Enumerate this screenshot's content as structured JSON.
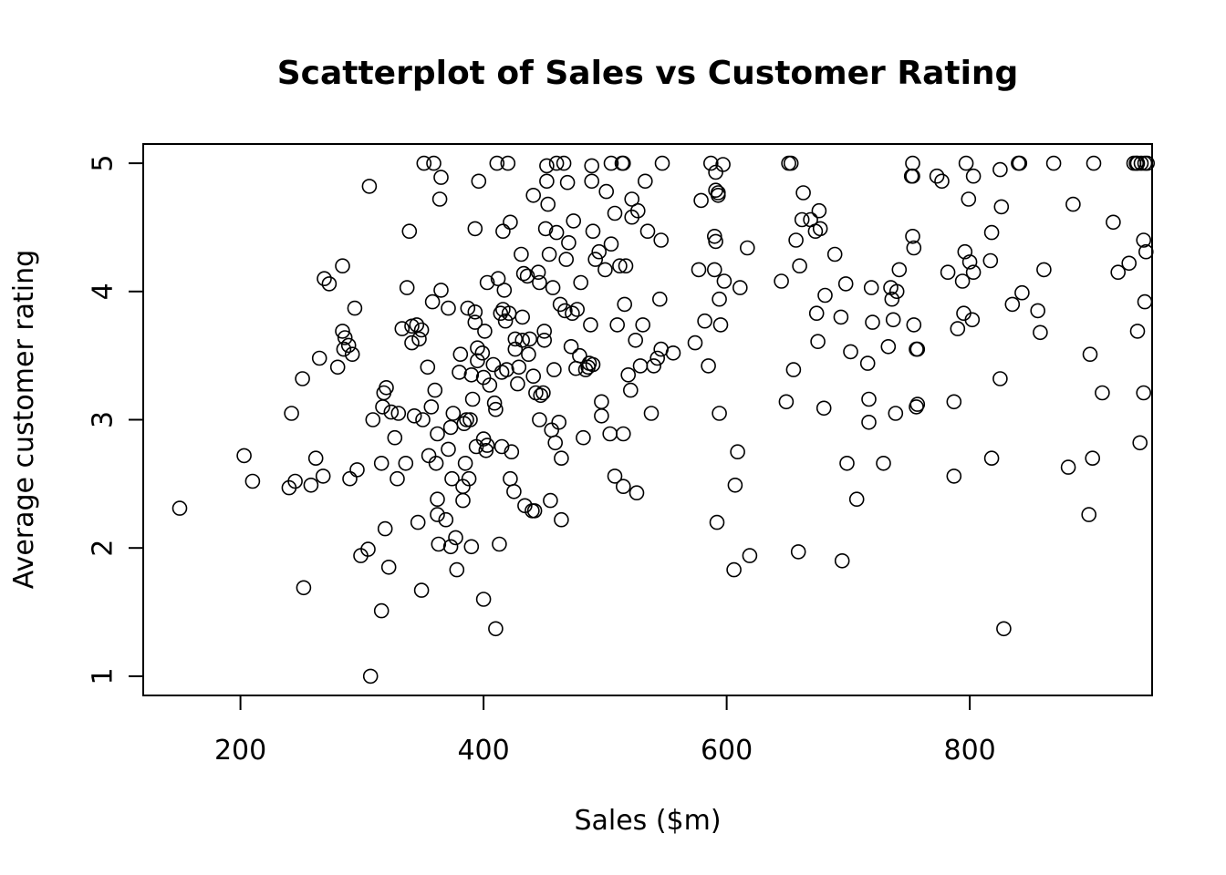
{
  "chart_data": {
    "type": "scatter",
    "title": "Scatterplot of Sales vs Customer Rating",
    "xlabel": "Sales ($m)",
    "ylabel": "Average customer rating",
    "xlim": [
      120,
      950
    ],
    "ylim": [
      0.85,
      5.15
    ],
    "xticks": [
      200,
      400,
      600,
      800
    ],
    "yticks": [
      1,
      2,
      3,
      4,
      5
    ],
    "grid": false,
    "legend": "none",
    "marker": "open-circle",
    "points": [
      [
        150,
        2.31
      ],
      [
        203,
        2.72
      ],
      [
        210,
        2.52
      ],
      [
        240,
        2.47
      ],
      [
        242,
        3.05
      ],
      [
        245,
        2.52
      ],
      [
        251,
        3.32
      ],
      [
        252,
        1.69
      ],
      [
        258,
        2.49
      ],
      [
        262,
        2.7
      ],
      [
        265,
        3.48
      ],
      [
        268,
        2.56
      ],
      [
        269,
        4.1
      ],
      [
        273,
        4.06
      ],
      [
        280,
        3.41
      ],
      [
        284,
        3.69
      ],
      [
        284,
        4.2
      ],
      [
        285,
        3.55
      ],
      [
        286,
        3.64
      ],
      [
        289,
        3.58
      ],
      [
        290,
        2.54
      ],
      [
        292,
        3.51
      ],
      [
        294,
        3.87
      ],
      [
        296,
        2.61
      ],
      [
        299,
        1.94
      ],
      [
        305,
        1.99
      ],
      [
        306,
        4.82
      ],
      [
        307,
        1.0
      ],
      [
        309,
        3.0
      ],
      [
        316,
        2.66
      ],
      [
        316,
        1.51
      ],
      [
        317,
        3.1
      ],
      [
        318,
        3.21
      ],
      [
        319,
        2.15
      ],
      [
        320,
        3.25
      ],
      [
        322,
        1.85
      ],
      [
        324,
        3.06
      ],
      [
        327,
        2.86
      ],
      [
        329,
        2.54
      ],
      [
        330,
        3.05
      ],
      [
        333,
        3.71
      ],
      [
        336,
        2.66
      ],
      [
        337,
        4.03
      ],
      [
        339,
        4.47
      ],
      [
        341,
        3.6
      ],
      [
        341,
        3.73
      ],
      [
        343,
        3.03
      ],
      [
        345,
        3.74
      ],
      [
        346,
        2.2
      ],
      [
        347,
        3.63
      ],
      [
        349,
        3.7
      ],
      [
        349,
        1.67
      ],
      [
        350,
        3.0
      ],
      [
        351,
        5.0
      ],
      [
        354,
        3.41
      ],
      [
        355,
        2.72
      ],
      [
        357,
        3.1
      ],
      [
        358,
        3.92
      ],
      [
        359,
        5.0
      ],
      [
        360,
        3.23
      ],
      [
        361,
        2.66
      ],
      [
        362,
        2.26
      ],
      [
        362,
        2.89
      ],
      [
        362,
        2.38
      ],
      [
        363,
        2.03
      ],
      [
        364,
        4.72
      ],
      [
        365,
        4.89
      ],
      [
        365,
        4.01
      ],
      [
        369,
        2.22
      ],
      [
        371,
        2.77
      ],
      [
        371,
        3.87
      ],
      [
        373,
        2.01
      ],
      [
        373,
        2.94
      ],
      [
        374,
        2.54
      ],
      [
        375,
        3.05
      ],
      [
        377,
        2.08
      ],
      [
        378,
        1.83
      ],
      [
        380,
        3.37
      ],
      [
        381,
        3.51
      ],
      [
        383,
        2.48
      ],
      [
        383,
        2.37
      ],
      [
        384,
        2.97
      ],
      [
        385,
        2.66
      ],
      [
        386,
        3.0
      ],
      [
        387,
        3.87
      ],
      [
        388,
        2.54
      ],
      [
        389,
        3.0
      ],
      [
        390,
        3.35
      ],
      [
        390,
        2.01
      ],
      [
        391,
        3.16
      ],
      [
        393,
        3.76
      ],
      [
        393,
        3.84
      ],
      [
        393,
        4.49
      ],
      [
        394,
        2.79
      ],
      [
        395,
        3.56
      ],
      [
        395,
        3.46
      ],
      [
        396,
        4.86
      ],
      [
        399,
        3.52
      ],
      [
        400,
        3.33
      ],
      [
        400,
        2.85
      ],
      [
        400,
        1.6
      ],
      [
        401,
        3.69
      ],
      [
        402,
        2.76
      ],
      [
        403,
        2.8
      ],
      [
        403,
        4.07
      ],
      [
        405,
        3.27
      ],
      [
        408,
        3.43
      ],
      [
        409,
        3.13
      ],
      [
        410,
        1.37
      ],
      [
        410,
        3.08
      ],
      [
        411,
        5.0
      ],
      [
        412,
        4.1
      ],
      [
        413,
        2.03
      ],
      [
        414,
        3.83
      ],
      [
        415,
        3.37
      ],
      [
        415,
        2.79
      ],
      [
        416,
        3.86
      ],
      [
        416,
        4.47
      ],
      [
        417,
        4.01
      ],
      [
        418,
        3.77
      ],
      [
        419,
        3.39
      ],
      [
        420,
        5.0
      ],
      [
        421,
        3.83
      ],
      [
        422,
        2.54
      ],
      [
        422,
        4.54
      ],
      [
        423,
        2.75
      ],
      [
        425,
        2.44
      ],
      [
        426,
        3.55
      ],
      [
        426,
        3.63
      ],
      [
        428,
        3.28
      ],
      [
        429,
        3.41
      ],
      [
        431,
        4.29
      ],
      [
        432,
        3.8
      ],
      [
        432,
        3.62
      ],
      [
        433,
        4.14
      ],
      [
        434,
        2.33
      ],
      [
        436,
        4.12
      ],
      [
        437,
        3.51
      ],
      [
        438,
        3.63
      ],
      [
        440,
        2.29
      ],
      [
        441,
        3.34
      ],
      [
        441,
        4.75
      ],
      [
        442,
        2.29
      ],
      [
        443,
        3.21
      ],
      [
        445,
        4.15
      ],
      [
        446,
        3.0
      ],
      [
        446,
        4.07
      ],
      [
        447,
        3.19
      ],
      [
        449,
        3.21
      ],
      [
        450,
        3.62
      ],
      [
        450,
        3.69
      ],
      [
        451,
        4.49
      ],
      [
        452,
        4.86
      ],
      [
        452,
        4.98
      ],
      [
        453,
        4.68
      ],
      [
        454,
        4.29
      ],
      [
        455,
        2.37
      ],
      [
        456,
        2.92
      ],
      [
        457,
        4.03
      ],
      [
        458,
        3.39
      ],
      [
        459,
        2.82
      ],
      [
        460,
        5.0
      ],
      [
        460,
        4.46
      ],
      [
        462,
        2.98
      ],
      [
        463,
        3.9
      ],
      [
        464,
        2.7
      ],
      [
        464,
        2.22
      ],
      [
        466,
        5.0
      ],
      [
        467,
        3.85
      ],
      [
        468,
        4.25
      ],
      [
        469,
        4.85
      ],
      [
        470,
        4.38
      ],
      [
        472,
        3.57
      ],
      [
        473,
        3.83
      ],
      [
        474,
        4.55
      ],
      [
        476,
        3.4
      ],
      [
        477,
        3.86
      ],
      [
        479,
        3.5
      ],
      [
        480,
        4.07
      ],
      [
        482,
        2.86
      ],
      [
        484,
        3.39
      ],
      [
        486,
        3.41
      ],
      [
        487,
        3.44
      ],
      [
        488,
        3.74
      ],
      [
        489,
        4.98
      ],
      [
        489,
        4.86
      ],
      [
        490,
        3.43
      ],
      [
        490,
        4.47
      ],
      [
        492,
        4.25
      ],
      [
        495,
        4.31
      ],
      [
        497,
        3.14
      ],
      [
        497,
        3.03
      ],
      [
        500,
        4.17
      ],
      [
        501,
        4.78
      ],
      [
        504,
        2.89
      ],
      [
        505,
        4.37
      ],
      [
        505,
        5.0
      ],
      [
        508,
        4.61
      ],
      [
        508,
        2.56
      ],
      [
        510,
        3.74
      ],
      [
        512,
        4.2
      ],
      [
        514,
        5.0
      ],
      [
        515,
        5.0
      ],
      [
        515,
        2.89
      ],
      [
        515,
        2.48
      ],
      [
        516,
        3.9
      ],
      [
        517,
        4.2
      ],
      [
        519,
        3.35
      ],
      [
        521,
        3.23
      ],
      [
        522,
        4.58
      ],
      [
        522,
        4.72
      ],
      [
        525,
        3.62
      ],
      [
        526,
        2.43
      ],
      [
        527,
        4.63
      ],
      [
        529,
        3.42
      ],
      [
        531,
        3.74
      ],
      [
        533,
        4.86
      ],
      [
        535,
        4.47
      ],
      [
        538,
        3.05
      ],
      [
        540,
        3.42
      ],
      [
        543,
        3.48
      ],
      [
        545,
        3.94
      ],
      [
        546,
        3.55
      ],
      [
        546,
        4.4
      ],
      [
        547,
        5.0
      ],
      [
        556,
        3.52
      ],
      [
        574,
        3.6
      ],
      [
        577,
        4.17
      ],
      [
        579,
        4.71
      ],
      [
        582,
        3.77
      ],
      [
        585,
        3.42
      ],
      [
        587,
        5.0
      ],
      [
        590,
        4.43
      ],
      [
        590,
        4.17
      ],
      [
        591,
        4.39
      ],
      [
        591,
        4.79
      ],
      [
        591,
        4.93
      ],
      [
        592,
        2.2
      ],
      [
        593,
        4.75
      ],
      [
        593,
        4.77
      ],
      [
        594,
        3.94
      ],
      [
        594,
        3.05
      ],
      [
        595,
        3.74
      ],
      [
        597,
        4.99
      ],
      [
        598,
        4.08
      ],
      [
        606,
        1.83
      ],
      [
        607,
        2.49
      ],
      [
        609,
        2.75
      ],
      [
        611,
        4.03
      ],
      [
        617,
        4.34
      ],
      [
        619,
        1.94
      ],
      [
        645,
        4.08
      ],
      [
        649,
        3.14
      ],
      [
        651,
        5.0
      ],
      [
        653,
        5.0
      ],
      [
        655,
        3.39
      ],
      [
        657,
        4.4
      ],
      [
        659,
        1.97
      ],
      [
        660,
        4.2
      ],
      [
        662,
        4.56
      ],
      [
        663,
        4.77
      ],
      [
        669,
        4.56
      ],
      [
        673,
        4.47
      ],
      [
        674,
        3.83
      ],
      [
        675,
        3.61
      ],
      [
        676,
        4.63
      ],
      [
        677,
        4.49
      ],
      [
        680,
        3.09
      ],
      [
        681,
        3.97
      ],
      [
        689,
        4.29
      ],
      [
        694,
        3.8
      ],
      [
        695,
        1.9
      ],
      [
        698,
        4.06
      ],
      [
        699,
        2.66
      ],
      [
        702,
        3.53
      ],
      [
        707,
        2.38
      ],
      [
        716,
        3.44
      ],
      [
        717,
        2.98
      ],
      [
        717,
        3.16
      ],
      [
        719,
        4.03
      ],
      [
        720,
        3.76
      ],
      [
        729,
        2.66
      ],
      [
        733,
        3.57
      ],
      [
        735,
        4.03
      ],
      [
        736,
        3.94
      ],
      [
        737,
        3.78
      ],
      [
        739,
        3.05
      ],
      [
        740,
        4.0
      ],
      [
        742,
        4.17
      ],
      [
        752,
        4.9
      ],
      [
        753,
        4.9
      ],
      [
        753,
        5.0
      ],
      [
        753,
        4.43
      ],
      [
        754,
        3.74
      ],
      [
        754,
        4.34
      ],
      [
        756,
        3.1
      ],
      [
        756,
        3.55
      ],
      [
        757,
        3.55
      ],
      [
        757,
        3.12
      ],
      [
        773,
        4.9
      ],
      [
        777,
        4.86
      ],
      [
        782,
        4.15
      ],
      [
        787,
        2.56
      ],
      [
        787,
        3.14
      ],
      [
        790,
        3.71
      ],
      [
        794,
        4.08
      ],
      [
        795,
        3.83
      ],
      [
        796,
        4.31
      ],
      [
        797,
        5.0
      ],
      [
        799,
        4.72
      ],
      [
        800,
        4.23
      ],
      [
        802,
        3.78
      ],
      [
        803,
        4.15
      ],
      [
        803,
        4.9
      ],
      [
        817,
        4.24
      ],
      [
        818,
        2.7
      ],
      [
        818,
        4.46
      ],
      [
        825,
        3.32
      ],
      [
        825,
        4.95
      ],
      [
        826,
        4.66
      ],
      [
        828,
        1.37
      ],
      [
        835,
        3.9
      ],
      [
        840,
        5.0
      ],
      [
        841,
        5.0
      ],
      [
        843,
        3.99
      ],
      [
        856,
        3.85
      ],
      [
        858,
        3.68
      ],
      [
        861,
        4.17
      ],
      [
        869,
        5.0
      ],
      [
        881,
        2.63
      ],
      [
        885,
        4.68
      ],
      [
        898,
        2.26
      ],
      [
        899,
        3.51
      ],
      [
        901,
        2.7
      ],
      [
        902,
        5.0
      ],
      [
        909,
        3.21
      ],
      [
        918,
        4.54
      ],
      [
        922,
        4.15
      ],
      [
        931,
        4.22
      ],
      [
        935,
        5.0
      ],
      [
        937,
        5.0
      ],
      [
        938,
        5.0
      ],
      [
        938,
        3.69
      ],
      [
        940,
        2.82
      ],
      [
        941,
        5.0
      ],
      [
        943,
        4.4
      ],
      [
        943,
        3.21
      ],
      [
        944,
        5.0
      ],
      [
        944,
        3.92
      ],
      [
        945,
        4.31
      ],
      [
        946,
        5.0
      ]
    ]
  }
}
